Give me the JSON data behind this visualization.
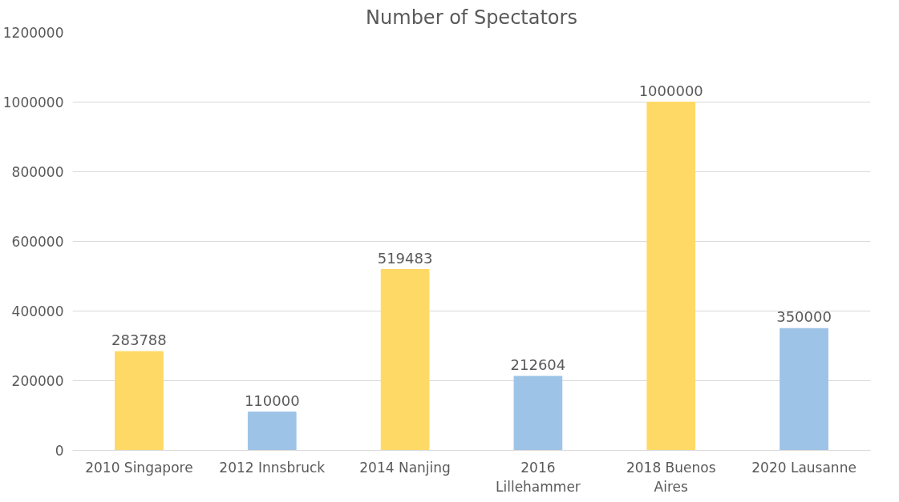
{
  "chart_data": {
    "type": "bar",
    "title": "Number of Spectators",
    "categories": [
      "2010 Singapore",
      "2012 Innsbruck",
      "2014 Nanjing",
      "2016 Lillehammer",
      "2018 Buenos Aires",
      "2020 Lausanne"
    ],
    "values": [
      283788,
      110000,
      519483,
      212604,
      1000000,
      350000
    ],
    "colors": [
      "#ffd966",
      "#9dc3e6",
      "#ffd966",
      "#9dc3e6",
      "#ffd966",
      "#9dc3e6"
    ],
    "ylim": [
      0,
      1200000
    ],
    "yticks": [
      0,
      200000,
      400000,
      600000,
      800000,
      1000000,
      1200000
    ],
    "grid": "y",
    "data_labels": true
  }
}
